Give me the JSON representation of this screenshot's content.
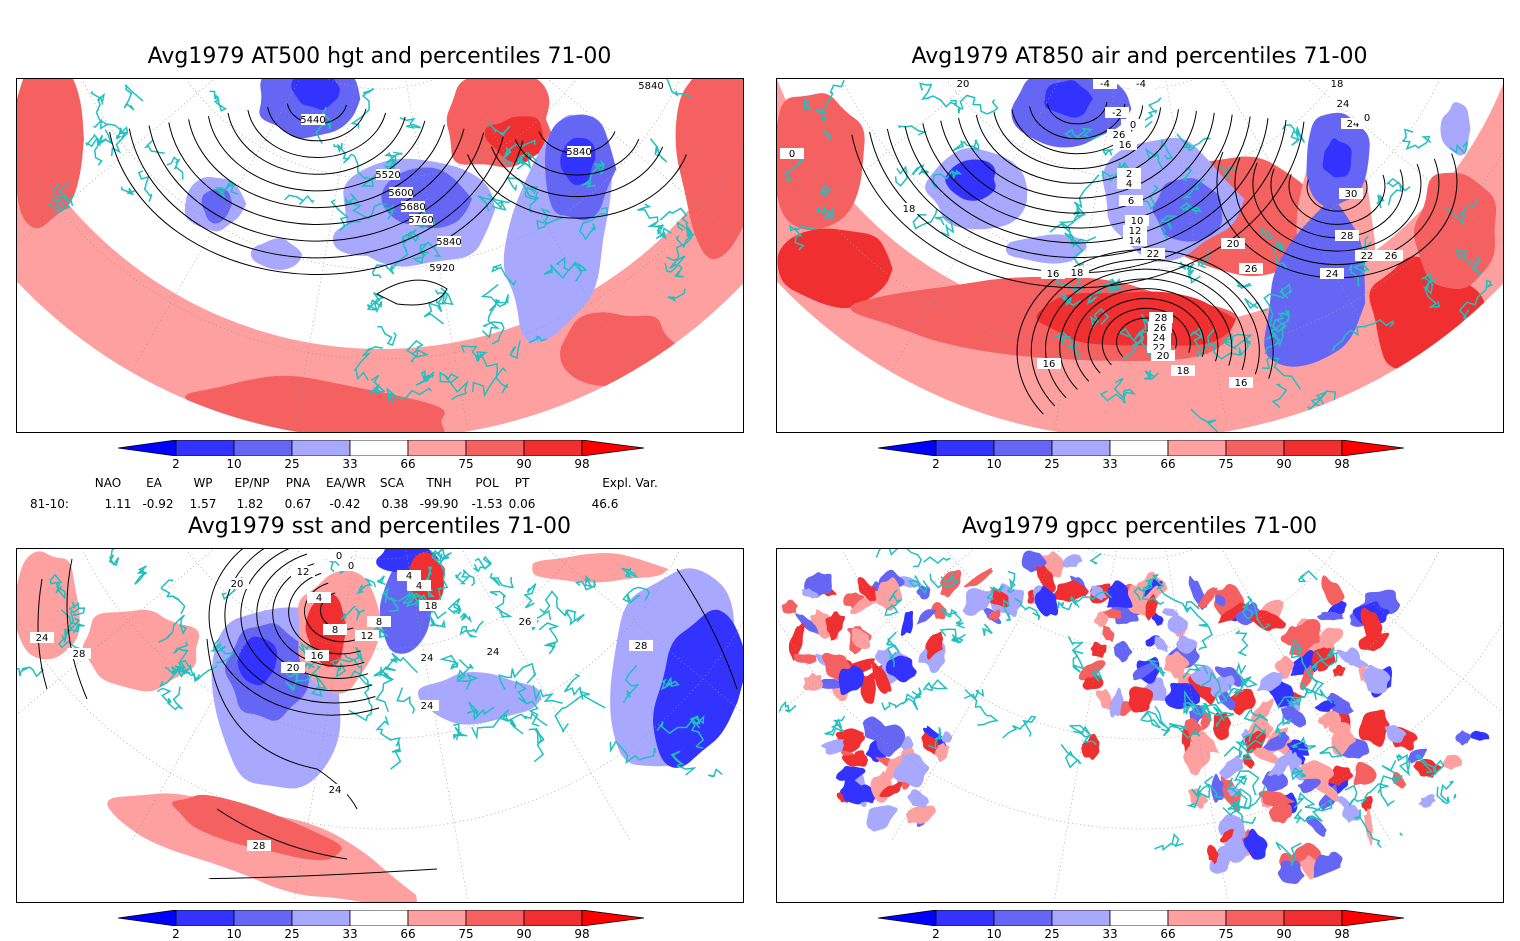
{
  "panels": [
    {
      "title": "Avg1979 AT500 hgt and percentiles 71-00",
      "contour_labels": [
        "5840",
        "5440",
        "5520",
        "5600",
        "5680",
        "5760",
        "5840",
        "5840",
        "5920"
      ]
    },
    {
      "title": "Avg1979 AT850 air and percentiles 71-00",
      "contour_labels": [
        "20",
        "-4",
        "-4",
        "18",
        "24",
        "24",
        "-2",
        "0",
        "26",
        "16",
        "0",
        "0",
        "2",
        "4",
        "6",
        "10",
        "30",
        "18",
        "12",
        "14",
        "28",
        "26",
        "18",
        "20",
        "22",
        "22",
        "24",
        "26",
        "16",
        "28",
        "26",
        "24",
        "22",
        "20",
        "16",
        "18",
        "16"
      ]
    },
    {
      "title": "Avg1979 sst and percentiles 71-00",
      "contour_labels": [
        "0",
        "0",
        "12",
        "4",
        "4",
        "20",
        "24",
        "28",
        "4",
        "8",
        "8",
        "12",
        "16",
        "18",
        "24",
        "24",
        "26",
        "28",
        "20",
        "24",
        "24",
        "28"
      ]
    },
    {
      "title": "Avg1979 gpcc percentiles 71-00",
      "contour_labels": []
    }
  ],
  "colorbar": {
    "labels": [
      "2",
      "10",
      "25",
      "33",
      "66",
      "75",
      "90",
      "98"
    ],
    "colors": {
      "deep_blue": "#0000ff",
      "blue_2_10": "#3333ff",
      "blue_10_25": "#6666f5",
      "blue_25_33": "#a8a8ff",
      "pink_66_75": "#ffa0a0",
      "red_75_90": "#f56060",
      "red_90_98": "#f03030",
      "deep_red": "#ff0000"
    }
  },
  "indices": {
    "headers": [
      "NAO",
      "EA",
      "WP",
      "EP/NP",
      "PNA",
      "EA/WR",
      "SCA",
      "TNH",
      "POL",
      "PT",
      "Expl. Var."
    ],
    "row_label": "81-10:",
    "values": [
      "1.11",
      "-0.92",
      "1.57",
      "1.82",
      "0.67",
      "-0.42",
      "0.38",
      "-99.90",
      "-1.53",
      "0.06",
      "46.6"
    ]
  },
  "map_colors": {
    "coast": "#20c0c0",
    "contour": "#000000",
    "grid": "#999999"
  }
}
